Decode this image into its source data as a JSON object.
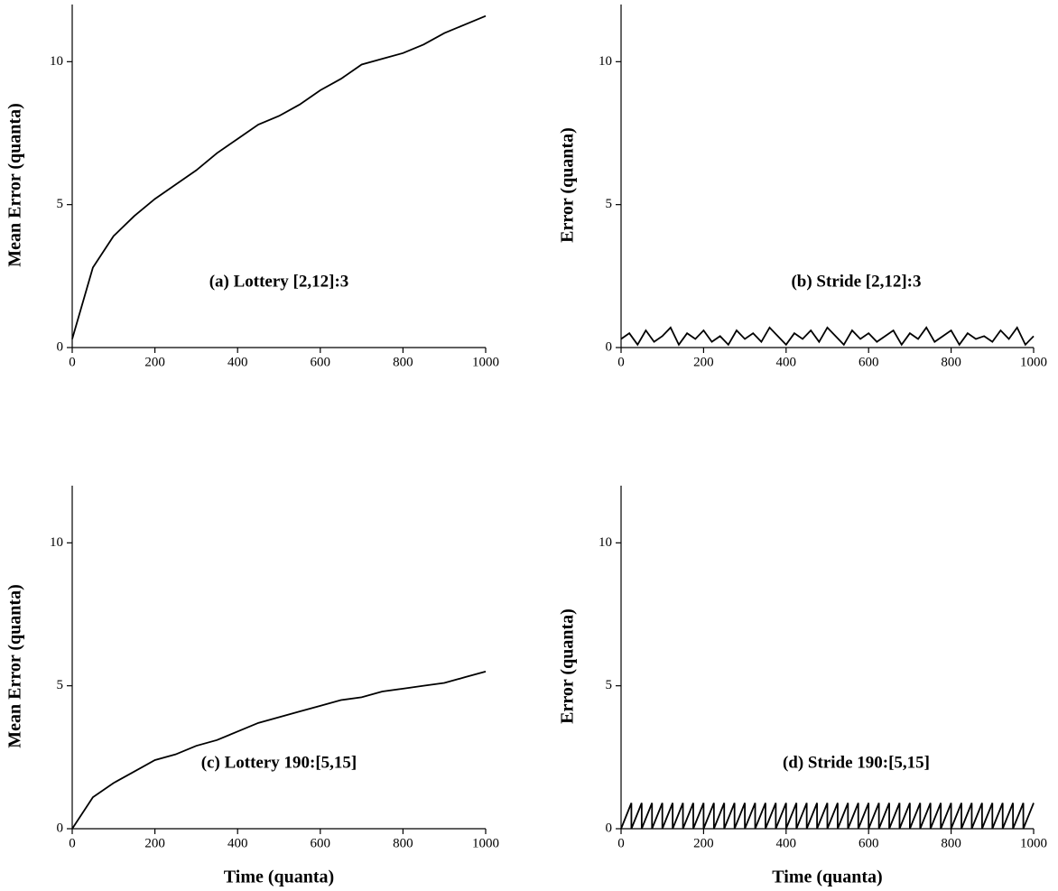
{
  "chart_data": [
    {
      "type": "line",
      "ylabel": "Mean Error (quanta)",
      "annotation": "(a) Lottery [2,12]:3",
      "color": "#000000",
      "x": [
        0,
        50,
        100,
        150,
        200,
        250,
        300,
        350,
        400,
        450,
        500,
        550,
        600,
        650,
        700,
        750,
        800,
        850,
        900,
        950,
        1000
      ],
      "values": [
        0.3,
        2.8,
        3.9,
        4.6,
        5.2,
        5.7,
        6.2,
        6.8,
        7.3,
        7.8,
        8.1,
        8.5,
        9.0,
        9.4,
        9.9,
        10.1,
        10.3,
        10.6,
        11.0,
        11.3,
        11.6
      ],
      "xlim": [
        0,
        1000
      ],
      "xticks": [
        0,
        200,
        400,
        600,
        800,
        1000
      ],
      "ylim": [
        0,
        12
      ],
      "yticks": [
        0,
        5,
        10
      ]
    },
    {
      "type": "line",
      "ylabel": "Error (quanta)",
      "annotation": "(b) Stride [2,12]:3",
      "color": "#000000",
      "x": [
        0,
        20,
        40,
        60,
        80,
        100,
        120,
        140,
        160,
        180,
        200,
        220,
        240,
        260,
        280,
        300,
        320,
        340,
        360,
        380,
        400,
        420,
        440,
        460,
        480,
        500,
        520,
        540,
        560,
        580,
        600,
        620,
        640,
        660,
        680,
        700,
        720,
        740,
        760,
        780,
        800,
        820,
        840,
        860,
        880,
        900,
        920,
        940,
        960,
        980,
        1000
      ],
      "values": [
        0.3,
        0.5,
        0.1,
        0.6,
        0.2,
        0.4,
        0.7,
        0.1,
        0.5,
        0.3,
        0.6,
        0.2,
        0.4,
        0.1,
        0.6,
        0.3,
        0.5,
        0.2,
        0.7,
        0.4,
        0.1,
        0.5,
        0.3,
        0.6,
        0.2,
        0.7,
        0.4,
        0.1,
        0.6,
        0.3,
        0.5,
        0.2,
        0.4,
        0.6,
        0.1,
        0.5,
        0.3,
        0.7,
        0.2,
        0.4,
        0.6,
        0.1,
        0.5,
        0.3,
        0.4,
        0.2,
        0.6,
        0.3,
        0.7,
        0.1,
        0.4
      ],
      "xlim": [
        0,
        1000
      ],
      "xticks": [
        0,
        200,
        400,
        600,
        800,
        1000
      ],
      "ylim": [
        0,
        12
      ],
      "yticks": [
        0,
        5,
        10
      ]
    },
    {
      "type": "line",
      "ylabel": "Mean Error (quanta)",
      "xlabel": "Time (quanta)",
      "annotation": "(c) Lottery 190:[5,15]",
      "color": "#000000",
      "x": [
        0,
        50,
        100,
        150,
        200,
        250,
        300,
        350,
        400,
        450,
        500,
        550,
        600,
        650,
        700,
        750,
        800,
        850,
        900,
        950,
        1000
      ],
      "values": [
        0,
        1.1,
        1.6,
        2.0,
        2.4,
        2.6,
        2.9,
        3.1,
        3.4,
        3.7,
        3.9,
        4.1,
        4.3,
        4.5,
        4.6,
        4.8,
        4.9,
        5.0,
        5.1,
        5.3,
        5.5
      ],
      "xlim": [
        0,
        1000
      ],
      "xticks": [
        0,
        200,
        400,
        600,
        800,
        1000
      ],
      "ylim": [
        0,
        12
      ],
      "yticks": [
        0,
        5,
        10
      ]
    },
    {
      "type": "line",
      "ylabel": "Error (quanta)",
      "xlabel": "Time (quanta)",
      "annotation": "(d) Stride 190:[5,15]",
      "color": "#000000",
      "x": [
        0,
        25,
        25,
        50,
        50,
        75,
        75,
        100,
        100,
        125,
        125,
        150,
        150,
        175,
        175,
        200,
        200,
        225,
        225,
        250,
        250,
        275,
        275,
        300,
        300,
        325,
        325,
        350,
        350,
        375,
        375,
        400,
        400,
        425,
        425,
        450,
        450,
        475,
        475,
        500,
        500,
        525,
        525,
        550,
        550,
        575,
        575,
        600,
        600,
        625,
        625,
        650,
        650,
        675,
        675,
        700,
        700,
        725,
        725,
        750,
        750,
        775,
        775,
        800,
        800,
        825,
        825,
        850,
        850,
        875,
        875,
        900,
        900,
        925,
        925,
        950,
        950,
        975,
        975,
        1000
      ],
      "values": [
        0,
        0.9,
        0,
        0.9,
        0,
        0.9,
        0,
        0.9,
        0,
        0.9,
        0,
        0.9,
        0,
        0.9,
        0,
        0.9,
        0,
        0.9,
        0,
        0.9,
        0,
        0.9,
        0,
        0.9,
        0,
        0.9,
        0,
        0.9,
        0,
        0.9,
        0,
        0.9,
        0,
        0.9,
        0,
        0.9,
        0,
        0.9,
        0,
        0.9,
        0,
        0.9,
        0,
        0.9,
        0,
        0.9,
        0,
        0.9,
        0,
        0.9,
        0,
        0.9,
        0,
        0.9,
        0,
        0.9,
        0,
        0.9,
        0,
        0.9,
        0,
        0.9,
        0,
        0.9,
        0,
        0.9,
        0,
        0.9,
        0,
        0.9,
        0,
        0.9,
        0,
        0.9,
        0,
        0.9,
        0,
        0.9,
        0,
        0.9
      ],
      "xlim": [
        0,
        1000
      ],
      "xticks": [
        0,
        200,
        400,
        600,
        800,
        1000
      ],
      "ylim": [
        0,
        12
      ],
      "yticks": [
        0,
        5,
        10
      ]
    }
  ]
}
